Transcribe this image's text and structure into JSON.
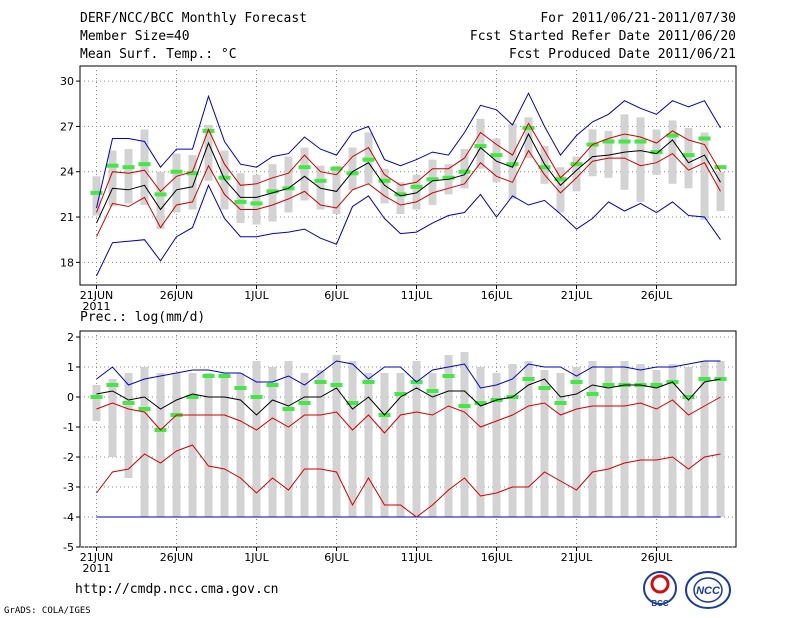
{
  "header": {
    "title": "DERF/NCC/BCC Monthly Forecast",
    "member_size": "Member Size=40",
    "variable": "Mean Surf. Temp.: °C",
    "period": "For 2011/06/21-2011/07/30",
    "start_date": "Fcst Started Refer Date 2011/06/20",
    "produced_date": "Fcst Produced Date 2011/06/21"
  },
  "footer": {
    "url": "http://cmdp.ncc.cma.gov.cn",
    "credit": "GrADS: COLA/IGES",
    "logo_left_text": "BCC",
    "logo_right_text": "NCC"
  },
  "colors": {
    "ensemble_mean": "#000000",
    "spread_band": "#d00000",
    "envelope": "#0000c8",
    "box": "#d3d3d3",
    "median": "#44e844"
  },
  "chart_data": [
    {
      "type": "line",
      "title": "Mean Surf. Temp.: °C",
      "x_ticks": [
        "21JUN",
        "26JUN",
        "1JUL",
        "6JUL",
        "11JUL",
        "16JUL",
        "21JUL",
        "26JUL"
      ],
      "x_year_label": "2011",
      "y_ticks": [
        "18",
        "21",
        "24",
        "27",
        "30"
      ],
      "ylim": [
        16.5,
        31
      ],
      "days": 40,
      "series": [
        {
          "name": "max",
          "color": "#0000c8",
          "values": [
            17.1,
            19.3,
            19.4,
            19.5,
            18.1,
            19.7,
            20.3,
            23.1,
            20.9,
            19.7,
            19.7,
            19.9,
            20.0,
            20.2,
            19.6,
            19.2,
            21.7,
            22.4,
            20.9,
            19.9,
            20.0,
            20.6,
            21.1,
            21.3,
            22.5,
            21.0,
            22.4,
            21.8,
            22.1,
            21.2,
            20.2,
            20.9,
            22.0,
            21.4,
            21.9,
            21.3,
            22.0,
            21.1,
            21.0,
            19.5
          ]
        },
        {
          "name": "max",
          "color": "#0000c8",
          "values": [
            21.6,
            26.2,
            26.2,
            26.0,
            24.3,
            25.5,
            25.5,
            29.0,
            26.0,
            24.5,
            24.3,
            25.0,
            25.2,
            26.3,
            25.5,
            25.1,
            26.6,
            27.0,
            24.8,
            24.4,
            24.8,
            25.3,
            25.1,
            26.6,
            28.4,
            28.1,
            27.1,
            29.2,
            27.0,
            25.1,
            26.4,
            27.3,
            27.8,
            28.7,
            28.2,
            27.8,
            28.7,
            28.3,
            28.7,
            26.9
          ]
        },
        {
          "name": "spread-low",
          "color": "#d00000",
          "values": [
            19.7,
            21.9,
            21.7,
            22.3,
            20.3,
            21.8,
            22.0,
            24.4,
            22.5,
            21.5,
            21.5,
            21.8,
            22.2,
            22.7,
            21.8,
            21.6,
            22.8,
            23.2,
            22.4,
            21.8,
            22.0,
            22.6,
            22.9,
            23.2,
            24.6,
            23.7,
            23.3,
            25.4,
            23.8,
            22.6,
            23.6,
            24.7,
            24.9,
            24.9,
            24.4,
            24.6,
            25.2,
            24.1,
            24.6,
            22.7
          ]
        },
        {
          "name": "spread-high",
          "color": "#d00000",
          "values": [
            21.3,
            24.0,
            23.9,
            24.1,
            22.7,
            23.7,
            24.0,
            26.8,
            24.5,
            23.1,
            23.2,
            23.6,
            23.9,
            25.1,
            24.0,
            23.8,
            25.0,
            25.6,
            23.8,
            23.1,
            23.3,
            24.2,
            24.2,
            24.9,
            26.6,
            25.8,
            25.1,
            27.2,
            25.4,
            23.6,
            24.6,
            25.8,
            26.2,
            26.5,
            26.3,
            25.9,
            26.7,
            26.1,
            25.8,
            24.0
          ]
        },
        {
          "name": "ensemble-mean",
          "color": "#000000",
          "values": [
            20.6,
            22.9,
            22.8,
            23.1,
            21.5,
            22.8,
            23.0,
            25.9,
            23.5,
            22.3,
            22.3,
            22.6,
            22.9,
            23.7,
            22.9,
            22.7,
            24.0,
            24.6,
            23.1,
            22.4,
            22.6,
            23.4,
            23.5,
            23.8,
            25.6,
            24.7,
            24.3,
            26.5,
            24.5,
            23.1,
            24.1,
            25.0,
            25.1,
            25.3,
            25.4,
            25.2,
            26.1,
            24.6,
            25.1,
            23.3
          ]
        }
      ],
      "boxes": {
        "low": [
          21.1,
          21.7,
          21.9,
          21.8,
          20.2,
          21.3,
          21.5,
          23.4,
          21.5,
          20.6,
          20.5,
          20.7,
          21.3,
          22.1,
          21.5,
          21.2,
          22.8,
          23.2,
          21.9,
          21.2,
          21.5,
          21.8,
          22.5,
          22.9,
          24.2,
          23.3,
          22.2,
          24.9,
          23.2,
          21.3,
          22.7,
          23.7,
          23.6,
          22.8,
          22.0,
          23.8,
          23.2,
          22.9,
          20.8,
          21.4
        ],
        "high": [
          23.7,
          25.4,
          25.5,
          26.8,
          24.0,
          25.2,
          25.1,
          27.1,
          25.4,
          23.9,
          23.8,
          24.5,
          25.0,
          25.6,
          24.4,
          24.4,
          25.6,
          26.6,
          24.2,
          23.3,
          23.8,
          24.8,
          24.5,
          25.5,
          27.5,
          26.2,
          27.2,
          27.6,
          25.7,
          24.3,
          25.0,
          26.8,
          26.7,
          27.8,
          27.6,
          26.8,
          27.4,
          26.9,
          26.6,
          24.0
        ]
      },
      "medians": [
        22.6,
        24.4,
        24.3,
        24.5,
        22.5,
        24.0,
        23.9,
        26.7,
        23.6,
        22.0,
        21.9,
        22.7,
        22.9,
        24.3,
        23.4,
        24.2,
        23.9,
        24.8,
        23.4,
        22.5,
        23.0,
        23.5,
        23.6,
        24.0,
        25.7,
        25.1,
        24.5,
        26.9,
        24.3,
        23.5,
        24.5,
        25.8,
        26.0,
        26.0,
        26.0,
        25.3,
        26.4,
        25.1,
        26.2,
        24.3
      ],
      "grid": "dotted"
    },
    {
      "type": "line",
      "title": "Prec.: log(mm/d)",
      "x_ticks": [
        "21JUN",
        "26JUN",
        "1JUL",
        "6JUL",
        "11JUL",
        "16JUL",
        "21JUL",
        "26JUL"
      ],
      "x_year_label": "2011",
      "y_ticks": [
        "-5",
        "-4",
        "-3",
        "-2",
        "-1",
        "0",
        "1",
        "2"
      ],
      "ylim": [
        -5,
        2.2
      ],
      "days": 40,
      "series": [
        {
          "name": "min",
          "color": "#0000c8",
          "values": [
            -4.0,
            -4.0,
            -4.0,
            -4.0,
            -4.0,
            -4.0,
            -4.0,
            -4.0,
            -4.0,
            -4.0,
            -4.0,
            -4.0,
            -4.0,
            -4.0,
            -4.0,
            -4.0,
            -4.0,
            -4.0,
            -4.0,
            -4.0,
            -4.0,
            -4.0,
            -4.0,
            -4.0,
            -4.0,
            -4.0,
            -4.0,
            -4.0,
            -4.0,
            -4.0,
            -4.0,
            -4.0,
            -4.0,
            -4.0,
            -4.0,
            -4.0,
            -4.0,
            -4.0,
            -4.0,
            -4.0
          ]
        },
        {
          "name": "max",
          "color": "#0000c8",
          "values": [
            0.6,
            1.0,
            0.4,
            0.6,
            0.7,
            0.8,
            0.9,
            0.9,
            0.8,
            0.8,
            0.5,
            0.5,
            0.7,
            0.4,
            0.8,
            1.2,
            1.1,
            0.6,
            1.0,
            1.0,
            0.5,
            0.9,
            1.0,
            1.1,
            0.3,
            0.4,
            0.6,
            1.1,
            1.0,
            1.0,
            0.7,
            1.0,
            1.0,
            1.0,
            0.9,
            1.0,
            1.0,
            1.1,
            1.2,
            1.2
          ]
        },
        {
          "name": "spread-low",
          "color": "#d00000",
          "values": [
            -3.2,
            -2.5,
            -2.4,
            -1.9,
            -2.2,
            -1.8,
            -1.6,
            -2.3,
            -2.4,
            -2.7,
            -3.2,
            -2.7,
            -3.1,
            -2.4,
            -2.4,
            -2.5,
            -3.6,
            -2.7,
            -3.6,
            -3.6,
            -4.0,
            -3.6,
            -3.1,
            -2.7,
            -3.3,
            -3.2,
            -3.0,
            -3.0,
            -2.5,
            -2.8,
            -3.1,
            -2.5,
            -2.4,
            -2.2,
            -2.1,
            -2.1,
            -2.0,
            -2.4,
            -2.0,
            -1.9
          ]
        },
        {
          "name": "spread-high",
          "color": "#d00000",
          "values": [
            -0.4,
            -0.2,
            -0.4,
            -0.5,
            -1.1,
            -0.6,
            -0.6,
            -0.6,
            -0.6,
            -0.8,
            -1.1,
            -0.7,
            -1.0,
            -0.6,
            -0.6,
            -0.5,
            -1.1,
            -0.6,
            -1.2,
            -0.6,
            -0.5,
            -0.6,
            -0.3,
            -0.5,
            -1.0,
            -0.8,
            -0.6,
            -0.3,
            -0.2,
            -0.6,
            -0.4,
            -0.3,
            -0.3,
            -0.3,
            -0.2,
            -0.4,
            -0.1,
            -0.6,
            -0.3,
            0.0
          ]
        },
        {
          "name": "ensemble-mean",
          "color": "#000000",
          "values": [
            0.1,
            0.2,
            -0.1,
            0.0,
            -0.4,
            -0.1,
            0.1,
            0.0,
            0.0,
            -0.1,
            -0.6,
            -0.1,
            -0.3,
            0.0,
            0.0,
            0.3,
            -0.4,
            0.0,
            -0.6,
            0.0,
            0.3,
            0.0,
            0.2,
            0.2,
            -0.3,
            -0.1,
            0.0,
            0.4,
            0.6,
            0.0,
            0.1,
            0.4,
            0.3,
            0.4,
            0.4,
            0.3,
            0.5,
            -0.1,
            0.5,
            0.6
          ]
        }
      ],
      "boxes": {
        "low": [
          -0.8,
          -2.0,
          -2.7,
          -4.0,
          -4.0,
          -4.0,
          -4.0,
          -4.0,
          -4.0,
          -4.0,
          -4.0,
          -4.0,
          -4.0,
          -4.0,
          -4.0,
          -4.0,
          -4.0,
          -4.0,
          -4.0,
          -4.0,
          -4.0,
          -4.0,
          -4.0,
          -4.0,
          -4.0,
          -4.0,
          -4.0,
          -4.0,
          -4.0,
          -4.0,
          -4.0,
          -4.0,
          -4.0,
          -4.0,
          -4.0,
          -4.0,
          -4.0,
          -4.0,
          -4.0,
          -4.0
        ],
        "high": [
          0.4,
          0.6,
          0.8,
          1.0,
          0.8,
          0.8,
          0.8,
          0.8,
          0.8,
          0.8,
          1.2,
          1.0,
          1.2,
          0.8,
          0.9,
          1.4,
          1.2,
          0.8,
          0.8,
          0.8,
          1.2,
          0.8,
          1.4,
          1.5,
          1.0,
          0.8,
          1.1,
          1.2,
          0.9,
          0.8,
          1.0,
          1.2,
          1.0,
          1.2,
          1.1,
          0.9,
          1.1,
          1.0,
          1.2,
          1.2
        ]
      },
      "medians": [
        0.0,
        0.4,
        -0.2,
        -0.4,
        -1.1,
        -0.6,
        0.0,
        0.7,
        0.7,
        0.3,
        0.0,
        0.4,
        -0.4,
        -0.2,
        0.5,
        0.4,
        -0.2,
        0.5,
        -0.6,
        0.1,
        0.5,
        0.2,
        0.7,
        -0.3,
        -0.2,
        -0.1,
        0.0,
        0.6,
        0.3,
        -0.2,
        0.5,
        0.1,
        0.4,
        0.4,
        0.4,
        0.4,
        0.5,
        0.0,
        0.6,
        0.6
      ],
      "grid": "dotted"
    }
  ]
}
